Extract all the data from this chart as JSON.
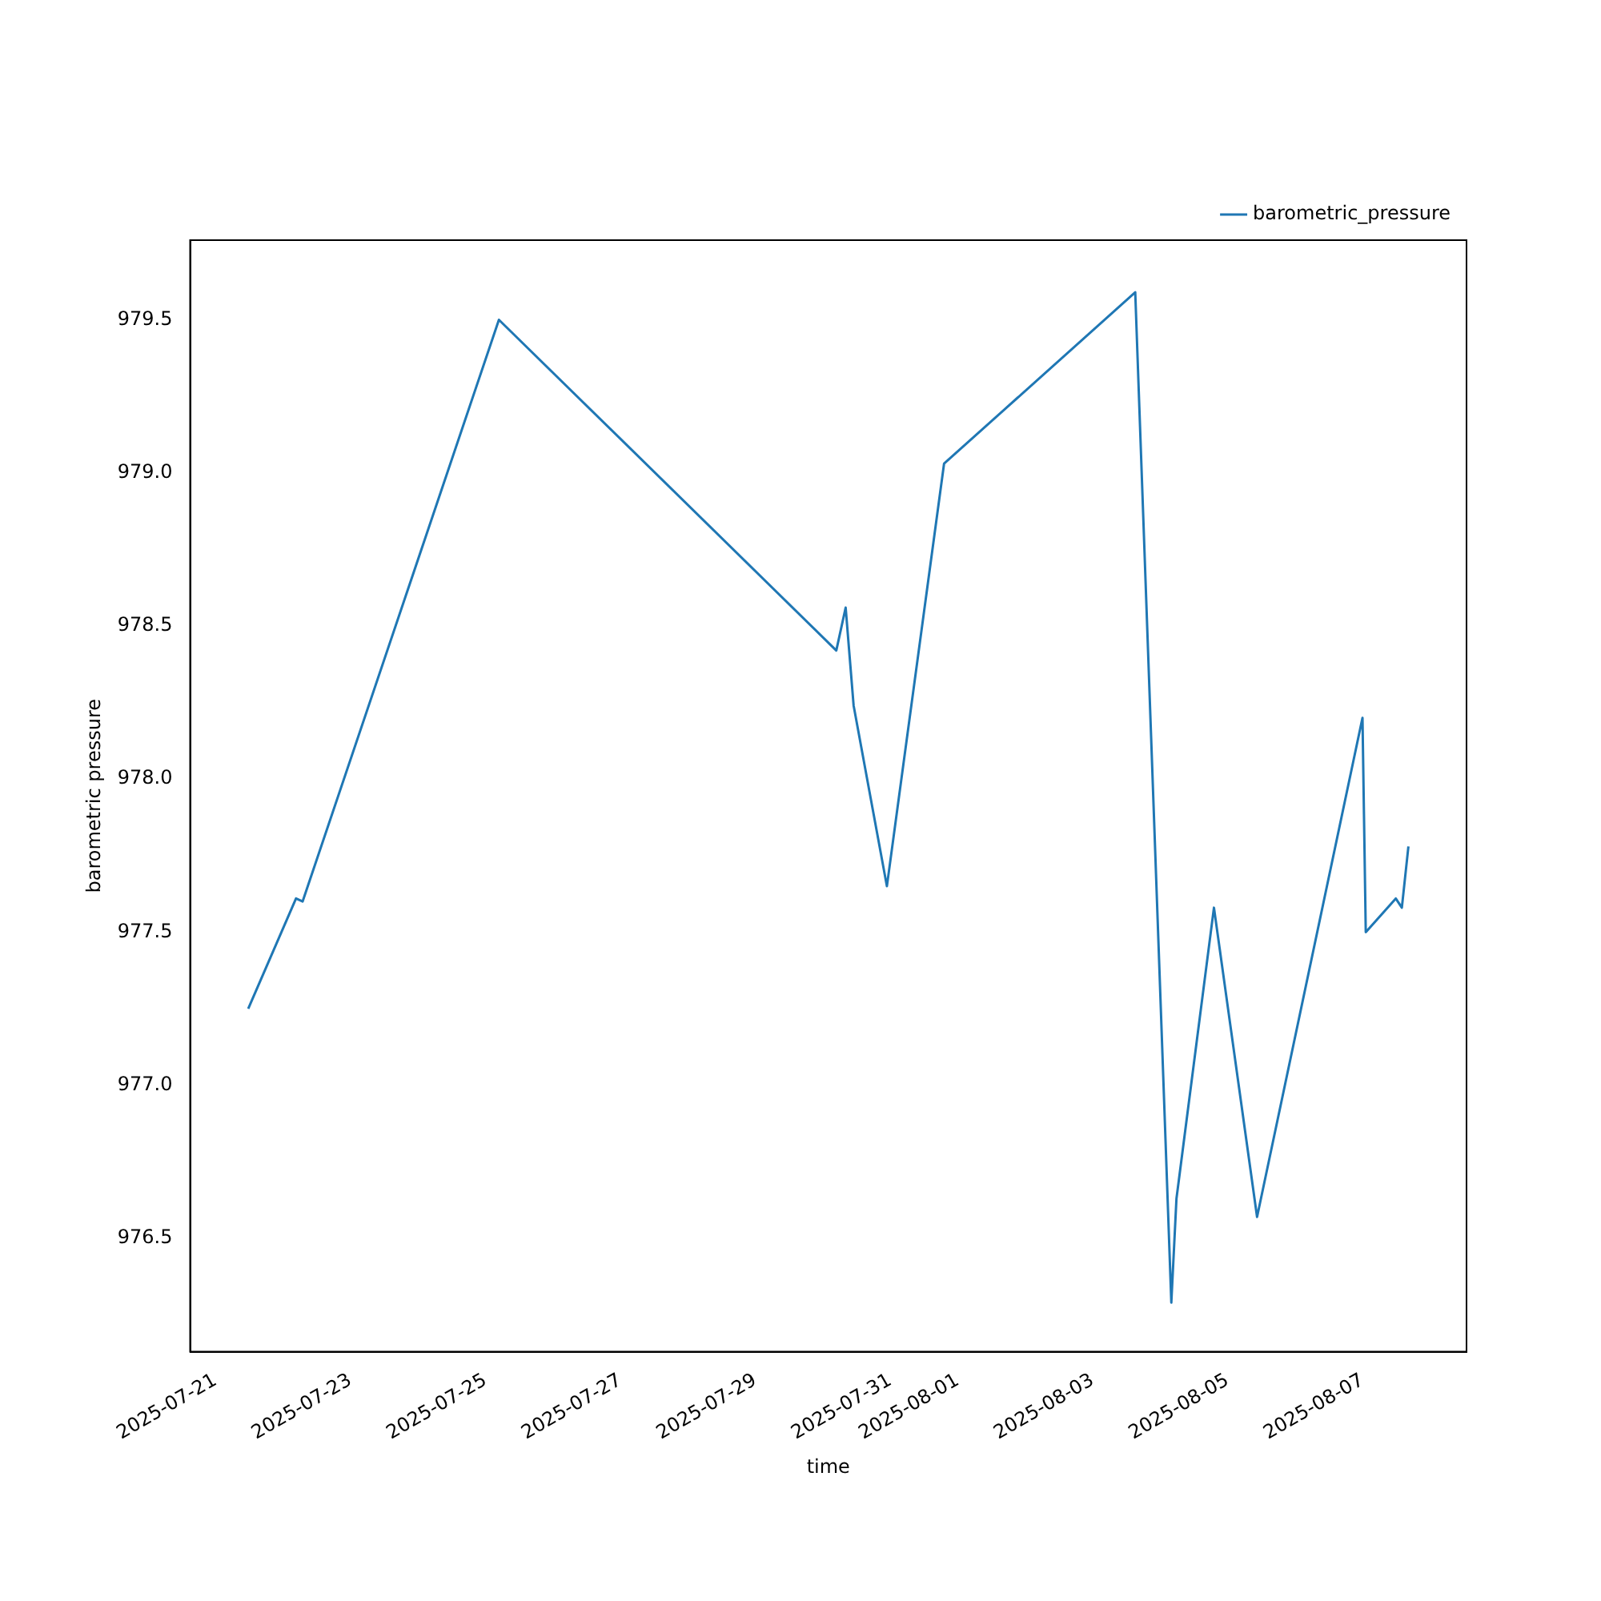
{
  "chart_data": {
    "type": "line",
    "xlabel": "time",
    "ylabel": "barometric pressure",
    "x": [
      "2025-07-21T11:40",
      "2025-07-22T04:40",
      "2025-07-22T07:00",
      "2025-07-25T04:50",
      "2025-07-30T04:50",
      "2025-07-30T08:10",
      "2025-07-30T11:00",
      "2025-07-30T22:50",
      "2025-07-31T19:10",
      "2025-08-03T15:10",
      "2025-08-04T04:00",
      "2025-08-04T05:50",
      "2025-08-04T19:10",
      "2025-08-05T10:30",
      "2025-08-07T00:00",
      "2025-08-07T01:10",
      "2025-08-07T11:50",
      "2025-08-07T14:00",
      "2025-08-07T16:20"
    ],
    "series": [
      {
        "name": "barometric_pressure",
        "color": "#1f77b4",
        "values": [
          977.25,
          977.61,
          977.6,
          979.5,
          978.42,
          978.56,
          978.24,
          977.65,
          979.03,
          979.59,
          976.29,
          976.63,
          977.58,
          976.57,
          978.2,
          977.5,
          977.61,
          977.58,
          977.78
        ]
      }
    ],
    "xlim": [
      "2025-07-20T15:00",
      "2025-08-08T13:00"
    ],
    "xticks": [
      "2025-07-21",
      "2025-07-23",
      "2025-07-25",
      "2025-07-27",
      "2025-07-29",
      "2025-07-31",
      "2025-08-01",
      "2025-08-03",
      "2025-08-05",
      "2025-08-07"
    ],
    "ylim": [
      976.13,
      979.76
    ],
    "yticks": [
      {
        "value": 976.5,
        "label": "976.5"
      },
      {
        "value": 977,
        "label": "977.0"
      },
      {
        "value": 977.5,
        "label": "977.5"
      },
      {
        "value": 978,
        "label": "978.0"
      },
      {
        "value": 978.5,
        "label": "978.5"
      },
      {
        "value": 979,
        "label": "979.0"
      },
      {
        "value": 979.5,
        "label": "979.5"
      }
    ],
    "grid": false,
    "legend": "top right",
    "marker": "none",
    "line_style": "solid"
  }
}
